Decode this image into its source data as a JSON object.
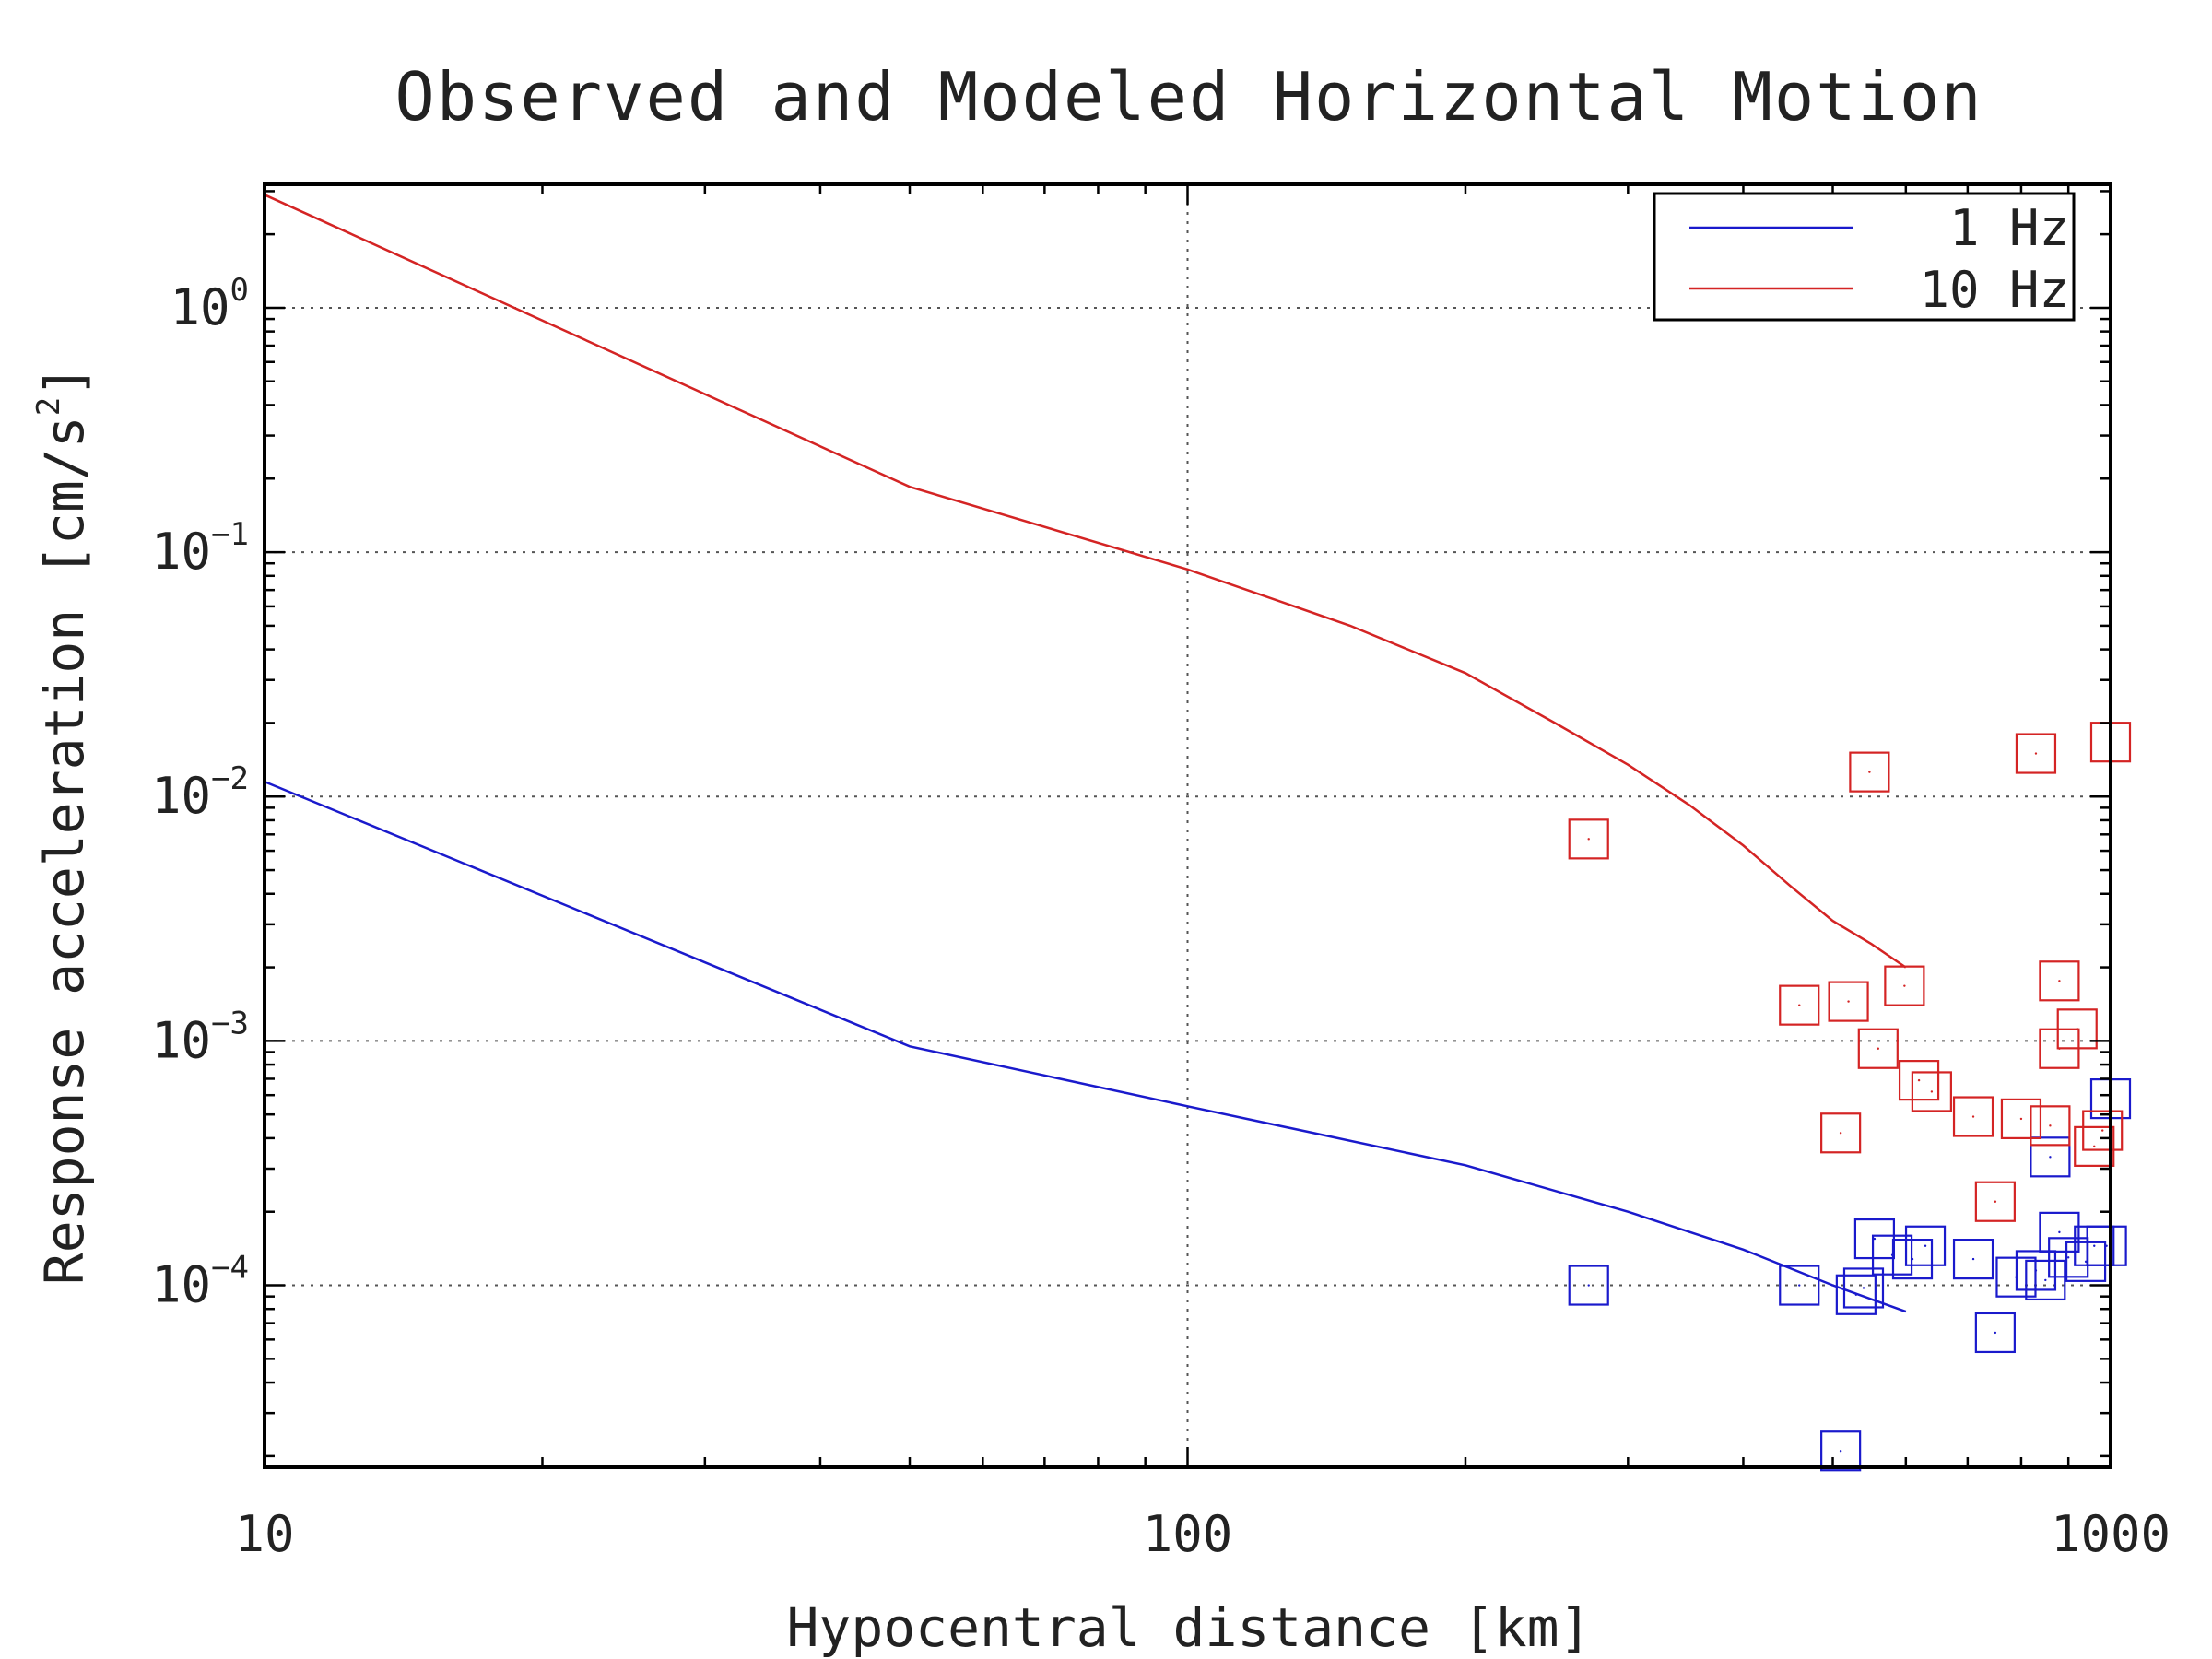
{
  "chart_data": {
    "type": "line",
    "title": "Observed and Modeled Horizontal Motion",
    "xlabel": "Hypocentral distance [km]",
    "ylabel": "Response acceleration [cm/s",
    "ylabel_sup": "2",
    "ylabel_end": "]",
    "xscale": "log",
    "yscale": "log",
    "xlim": [
      10,
      1000
    ],
    "ylim": [
      1.8e-05,
      3.2
    ],
    "x_ticks": [
      {
        "value": 10,
        "label": "10"
      },
      {
        "value": 100,
        "label": "100"
      },
      {
        "value": 1000,
        "label": "1000"
      }
    ],
    "y_ticks": [
      {
        "value": 1,
        "base": "10",
        "exp": "0"
      },
      {
        "value": 0.1,
        "base": "10",
        "exp": "−1"
      },
      {
        "value": 0.01,
        "base": "10",
        "exp": "−2"
      },
      {
        "value": 0.001,
        "base": "10",
        "exp": "−3"
      },
      {
        "value": 0.0001,
        "base": "10",
        "exp": "−4"
      }
    ],
    "grid": true,
    "legend_position": "top-right",
    "series": [
      {
        "name": "1 Hz",
        "color": "#1a1acc",
        "kind": "model",
        "points": [
          [
            10,
            0.0115
          ],
          [
            50,
            0.00095
          ],
          [
            100,
            0.00054
          ],
          [
            200,
            0.00031
          ],
          [
            300,
            0.0002
          ],
          [
            400,
            0.00014
          ],
          [
            500,
            0.0001
          ],
          [
            600,
            7.8e-05
          ]
        ]
      },
      {
        "name": "10 Hz",
        "color": "#d42424",
        "kind": "model",
        "points": [
          [
            10,
            2.9
          ],
          [
            50,
            0.185
          ],
          [
            100,
            0.085
          ],
          [
            150,
            0.05
          ],
          [
            200,
            0.032
          ],
          [
            250,
            0.02
          ],
          [
            300,
            0.0135
          ],
          [
            350,
            0.0092
          ],
          [
            400,
            0.0063
          ],
          [
            450,
            0.0043
          ],
          [
            500,
            0.0031
          ],
          [
            550,
            0.0025
          ],
          [
            600,
            0.002
          ]
        ]
      },
      {
        "name": "",
        "color": "#1a1acc",
        "kind": "observed",
        "points": [
          [
            272,
            0.0001
          ],
          [
            460,
            0.0001
          ],
          [
            510,
            2.1e-05
          ],
          [
            530,
            9.15e-05
          ],
          [
            540,
            9.75e-05
          ],
          [
            555,
            0.000155
          ],
          [
            580,
            0.000133
          ],
          [
            610,
            0.000128
          ],
          [
            630,
            0.000145
          ],
          [
            710,
            0.000128
          ],
          [
            750,
            6.4e-05
          ],
          [
            790,
            0.000108
          ],
          [
            830,
            0.000115
          ],
          [
            850,
            0.000105
          ],
          [
            860,
            0.000335
          ],
          [
            880,
            0.000165
          ],
          [
            900,
            0.00013
          ],
          [
            940,
            0.000125
          ],
          [
            960,
            0.000145
          ],
          [
            990,
            0.000145
          ],
          [
            1000,
            0.00058
          ]
        ]
      },
      {
        "name": "",
        "color": "#d42424",
        "kind": "observed",
        "points": [
          [
            272,
            0.0067
          ],
          [
            460,
            0.0014
          ],
          [
            510,
            0.00042
          ],
          [
            520,
            0.00145
          ],
          [
            548,
            0.0126
          ],
          [
            560,
            0.00093
          ],
          [
            598,
            0.00168
          ],
          [
            620,
            0.00069
          ],
          [
            640,
            0.00062
          ],
          [
            710,
            0.00049
          ],
          [
            750,
            0.00022
          ],
          [
            800,
            0.00048
          ],
          [
            830,
            0.015
          ],
          [
            860,
            0.00045
          ],
          [
            880,
            0.00093
          ],
          [
            880,
            0.00176
          ],
          [
            920,
            0.00112
          ],
          [
            960,
            0.00037
          ],
          [
            980,
            0.00043
          ],
          [
            1000,
            0.0167
          ]
        ]
      }
    ]
  }
}
